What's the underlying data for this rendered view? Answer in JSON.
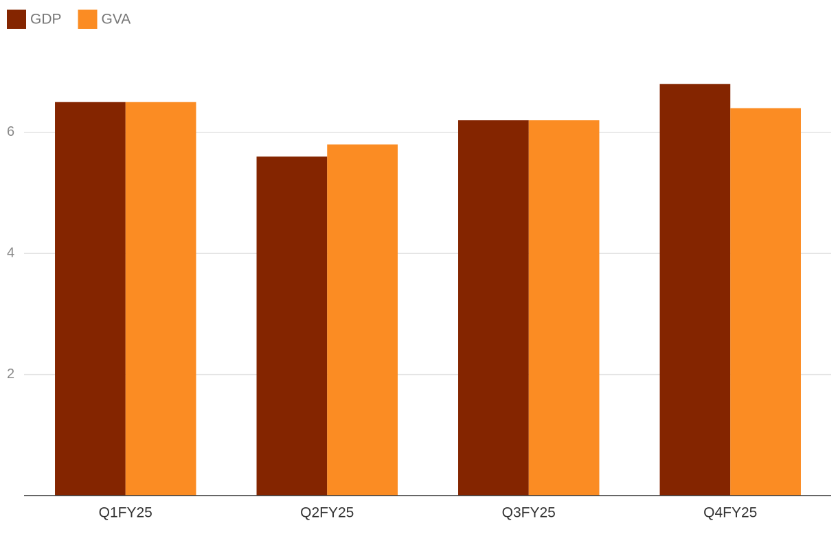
{
  "chart_data": {
    "type": "bar",
    "categories": [
      "Q1FY25",
      "Q2FY25",
      "Q3FY25",
      "Q4FY25"
    ],
    "series": [
      {
        "name": "GDP",
        "color": "#842500",
        "values": [
          6.5,
          5.6,
          6.2,
          6.8
        ]
      },
      {
        "name": "GVA",
        "color": "#fb8c23",
        "values": [
          6.5,
          5.8,
          6.2,
          6.4
        ]
      }
    ],
    "ylim": [
      0,
      7.2
    ],
    "yticks": [
      2,
      4,
      6
    ],
    "grid": true,
    "legend": "top-left"
  }
}
